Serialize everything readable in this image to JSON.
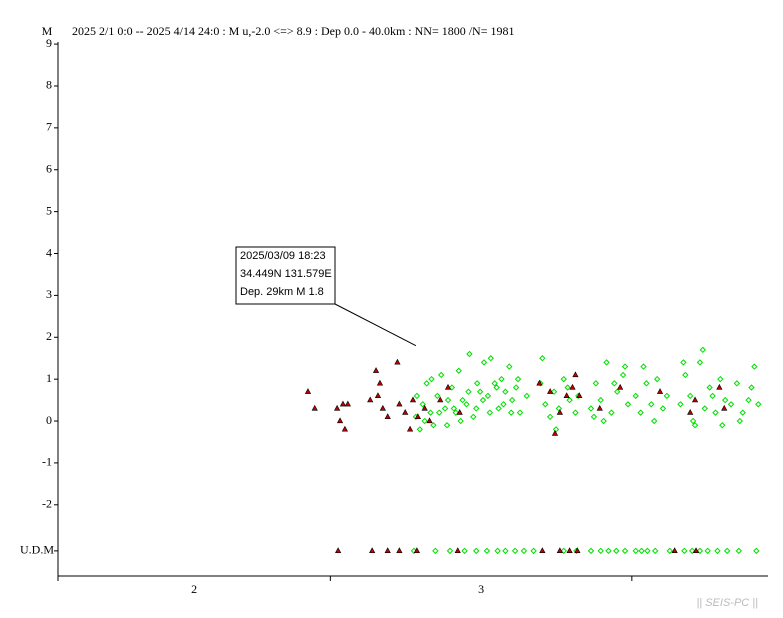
{
  "chart_data": {
    "type": "scatter",
    "title": "2025 2/1 0:0 -- 2025 4/14 24:0  : M u,-2.0 <=> 8.9   :  Dep 0.0 - 40.0km :  NN= 1800 /N= 1981",
    "y_label": "M",
    "footer": "|| SEIS-PC ||",
    "xlim": [
      0,
      73
    ],
    "ylim": [
      -3.7,
      9.05
    ],
    "yticks": [
      9,
      8,
      7,
      6,
      5,
      4,
      3,
      2,
      1,
      0,
      -1,
      -2,
      {
        "value": -3.1,
        "label": "U.D.M"
      }
    ],
    "month_boundaries": [
      0,
      28,
      59
    ],
    "month_labels": [
      {
        "value": 14,
        "label": "2"
      },
      {
        "value": 43.5,
        "label": "3"
      }
    ],
    "series": [
      {
        "marker": "diamond",
        "color": "#00e000",
        "x": [
          36.8,
          37.2,
          37.5,
          37.9,
          38.3,
          38.6,
          39.0,
          39.4,
          39.8,
          40.1,
          40.5,
          40.9,
          41.2,
          41.6,
          42.0,
          42.3,
          42.7,
          43.1,
          43.4,
          43.8,
          44.2,
          44.5,
          44.9,
          45.3,
          45.6,
          46.0,
          46.4,
          46.7,
          47.1,
          47.5,
          36.9,
          37.7,
          38.4,
          39.2,
          40.0,
          40.7,
          41.4,
          42.2,
          43.0,
          43.7,
          44.4,
          45.1,
          45.8,
          46.6,
          47.3,
          48.2,
          49.6,
          50.1,
          50.6,
          51.0,
          51.5,
          52.0,
          52.6,
          53.2,
          49.8,
          51.2,
          52.4,
          53.5,
          54.8,
          55.3,
          55.8,
          56.4,
          56.9,
          57.5,
          58.1,
          58.6,
          55.1,
          56.1,
          57.2,
          58.3,
          59.4,
          59.9,
          60.5,
          61.0,
          61.6,
          62.2,
          60.2,
          61.3,
          62.6,
          64.0,
          64.5,
          65.0,
          65.5,
          66.0,
          66.5,
          67.0,
          67.6,
          68.1,
          68.6,
          64.3,
          65.3,
          66.3,
          67.3,
          68.3,
          69.2,
          69.8,
          70.4,
          71.0,
          71.6,
          72.0,
          70.1,
          71.3
        ],
        "values": [
          0.1,
          -0.2,
          0.4,
          0.9,
          0.2,
          -0.1,
          0.6,
          1.1,
          0.3,
          0.5,
          0.8,
          0.2,
          1.2,
          0.5,
          0.4,
          1.6,
          0.1,
          0.9,
          0.7,
          1.4,
          0.6,
          1.5,
          0.9,
          0.3,
          1.0,
          0.7,
          1.3,
          0.5,
          0.8,
          0.2,
          0.6,
          0.0,
          1.0,
          0.2,
          -0.1,
          0.3,
          0.0,
          0.7,
          0.3,
          0.5,
          0.2,
          0.8,
          0.4,
          0.2,
          1.0,
          0.6,
          0.9,
          0.4,
          0.1,
          0.7,
          0.3,
          1.0,
          0.5,
          0.2,
          1.5,
          -0.2,
          0.8,
          0.6,
          0.3,
          0.9,
          0.5,
          1.4,
          0.2,
          0.7,
          1.1,
          0.4,
          0.1,
          0.0,
          0.9,
          1.3,
          0.6,
          0.2,
          0.9,
          0.4,
          1.0,
          0.3,
          1.3,
          0.0,
          0.6,
          0.4,
          1.1,
          0.6,
          -0.1,
          1.4,
          0.3,
          0.8,
          0.2,
          1.0,
          0.5,
          1.4,
          0.0,
          1.7,
          0.6,
          -0.1,
          0.4,
          0.9,
          0.2,
          0.5,
          1.3,
          0.4,
          0.0,
          0.8
        ],
        "udm_x": [
          36.6,
          38.8,
          40.3,
          41.8,
          43.0,
          44.1,
          45.2,
          46.0,
          47.0,
          47.9,
          48.9,
          52.0,
          53.3,
          54.8,
          55.8,
          56.6,
          57.4,
          58.3,
          59.4,
          60.0,
          60.6,
          61.4,
          62.9,
          64.4,
          65.2,
          66.0,
          66.8,
          67.8,
          68.8,
          70.0,
          71.8
        ]
      },
      {
        "marker": "triangle",
        "color": "#c00000",
        "x": [
          25.7,
          26.4,
          28.7,
          29.0,
          29.3,
          29.5,
          29.8,
          32.1,
          32.7,
          32.9,
          33.1,
          33.4,
          33.9,
          34.9,
          35.1,
          35.7,
          36.2,
          36.5,
          37.0,
          37.7,
          38.2,
          39.3,
          40.1,
          41.3,
          49.5,
          50.6,
          51.1,
          51.6,
          52.3,
          52.9,
          53.2,
          53.6,
          55.7,
          57.8,
          61.9,
          65.0,
          65.5,
          68.0,
          68.5
        ],
        "values": [
          0.7,
          0.3,
          0.3,
          0.0,
          0.4,
          -0.2,
          0.4,
          0.5,
          1.2,
          0.6,
          0.9,
          0.3,
          0.1,
          1.4,
          0.4,
          0.2,
          -0.2,
          0.5,
          0.1,
          0.3,
          0.0,
          0.5,
          0.8,
          0.2,
          0.9,
          0.7,
          -0.3,
          0.2,
          0.6,
          0.8,
          1.1,
          0.6,
          0.3,
          0.8,
          0.7,
          0.2,
          0.5,
          0.8,
          0.3
        ],
        "udm_x": [
          28.8,
          32.3,
          33.9,
          35.1,
          36.9,
          41.1,
          49.8,
          51.6,
          52.6,
          53.4,
          63.4,
          65.6
        ]
      }
    ],
    "annotation": {
      "lines": [
        "2025/03/09 18:23",
        "34.449N  131.579E",
        "Dep. 29km   M 1.8"
      ],
      "x": 36.8,
      "y": 1.8
    }
  }
}
